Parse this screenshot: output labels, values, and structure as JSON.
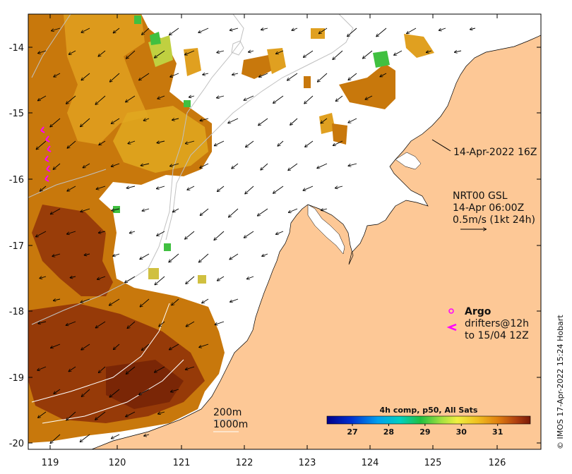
{
  "map": {
    "lon_ticks": [
      "119",
      "120",
      "121",
      "122",
      "123",
      "124",
      "125",
      "126"
    ],
    "lat_ticks": [
      "-14",
      "-15",
      "-16",
      "-17",
      "-18",
      "-19",
      "-20"
    ],
    "lon_range": [
      118.6,
      126.7
    ],
    "lat_range": [
      -20.1,
      -13.6
    ],
    "colors": {
      "land": "#fdc896",
      "sst_warm": "#c8780c",
      "sst_hot": "#8a2a08",
      "sst_mid": "#e0a020",
      "sst_cool": "#c8d040",
      "sst_green": "#40c040",
      "argo": "#ff00ff"
    }
  },
  "annotations": {
    "timestamp": "14-Apr-2022 16Z",
    "model_line1": "NRT00 GSL",
    "model_line2": "14-Apr 06:00Z",
    "model_line3": "0.5m/s (1kt 24h)",
    "argo_label": "Argo",
    "drifters_line1": "drifters@12h",
    "drifters_line2": "to 15/04 12Z",
    "contour_200": "200m",
    "contour_1000": "1000m"
  },
  "colorbar": {
    "title": "4h comp, p50, All Sats",
    "ticks": [
      "27",
      "28",
      "29",
      "30",
      "31"
    ],
    "tick_values": [
      27,
      28,
      29,
      30,
      31
    ],
    "range": [
      26.3,
      31.9
    ]
  },
  "credit": "© IMOS 17-Apr-2022 15:24 Hobart"
}
